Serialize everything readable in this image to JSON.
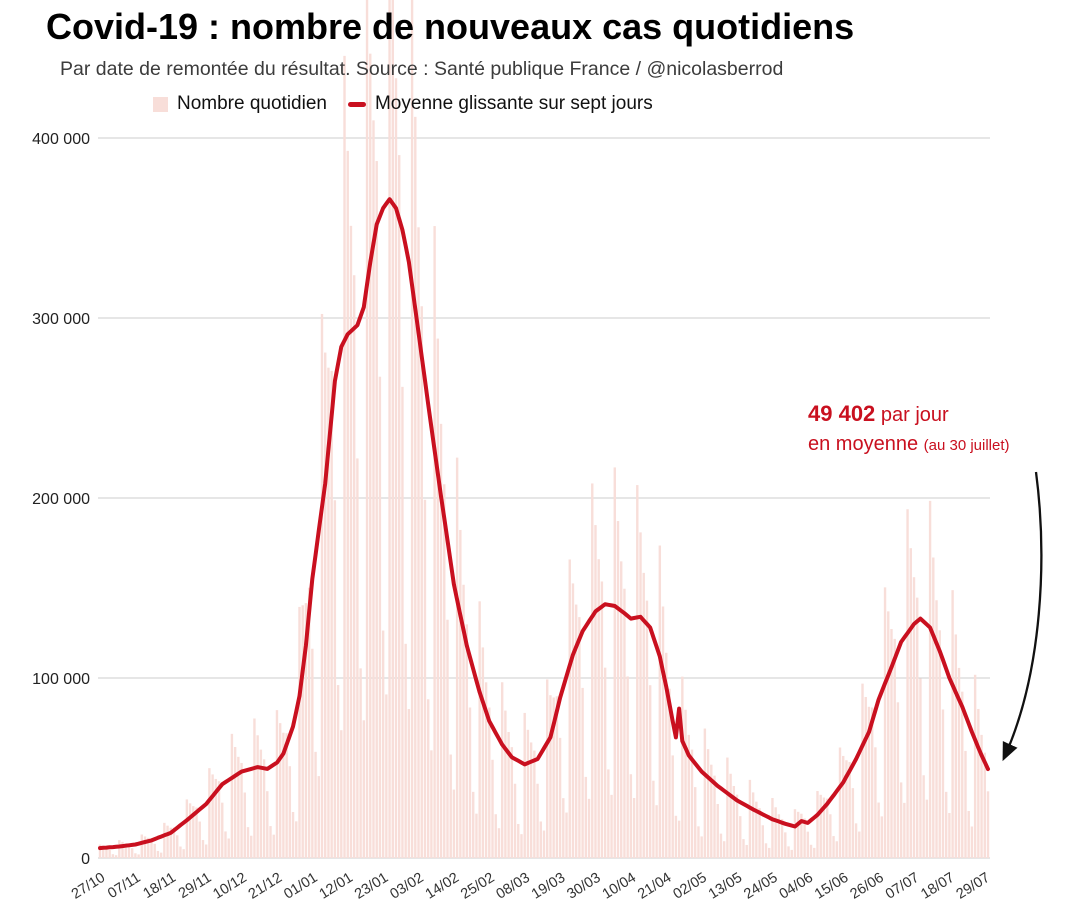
{
  "page": {
    "background": "#ffffff"
  },
  "chart_data": {
    "type": "bar+line",
    "title": "Covid-19 : nombre de nouveaux cas quotidiens",
    "subtitle": "Par date de remontée du résultat. Source : Santé publique France / @nicolasberrod",
    "legend": [
      {
        "label": "Nombre quotidien",
        "marker": "square",
        "color": "#f8ded9"
      },
      {
        "label": "Moyenne glissante sur sept jours",
        "marker": "dash",
        "color": "#c9101f"
      }
    ],
    "ylim": [
      0,
      477000
    ],
    "y_ticks": [
      0,
      100000,
      200000,
      300000,
      400000
    ],
    "y_tick_labels": [
      "0",
      "100 000",
      "200 000",
      "300 000",
      "400 000"
    ],
    "x_tick_labels": [
      "27/10",
      "07/11",
      "18/11",
      "29/11",
      "10/12",
      "21/12",
      "01/01",
      "12/01",
      "23/01",
      "03/02",
      "14/02",
      "25/02",
      "08/03",
      "19/03",
      "30/03",
      "10/04",
      "21/04",
      "02/05",
      "13/05",
      "24/05",
      "04/06",
      "15/06",
      "26/06",
      "07/07",
      "18/07",
      "29/07"
    ],
    "x_tick_interval_days": 11,
    "n_days": 277,
    "series": [
      {
        "name": "Nombre quotidien",
        "type": "bar",
        "note": "daily reported cases; value = moving_average(day) * weekday_factor(day)"
      },
      {
        "name": "Moyenne glissante sur sept jours",
        "type": "line",
        "note": "7-day moving average, anchor points below, linearly interpolated"
      }
    ],
    "avg_anchor_points": [
      [
        0,
        5500
      ],
      [
        5,
        6200
      ],
      [
        11,
        7500
      ],
      [
        16,
        9800
      ],
      [
        22,
        14000
      ],
      [
        27,
        21000
      ],
      [
        33,
        30000
      ],
      [
        38,
        41000
      ],
      [
        44,
        48000
      ],
      [
        49,
        50500
      ],
      [
        52,
        49500
      ],
      [
        55,
        53000
      ],
      [
        57,
        58000
      ],
      [
        60,
        73000
      ],
      [
        62,
        90000
      ],
      [
        64,
        118000
      ],
      [
        66,
        155000
      ],
      [
        68,
        182000
      ],
      [
        70,
        208000
      ],
      [
        73,
        265000
      ],
      [
        75,
        284000
      ],
      [
        77,
        291000
      ],
      [
        80,
        296000
      ],
      [
        82,
        306000
      ],
      [
        84,
        331000
      ],
      [
        86,
        352000
      ],
      [
        88,
        361000
      ],
      [
        90,
        366000
      ],
      [
        92,
        361000
      ],
      [
        94,
        349000
      ],
      [
        96,
        331000
      ],
      [
        99,
        292000
      ],
      [
        102,
        252000
      ],
      [
        106,
        201000
      ],
      [
        110,
        152000
      ],
      [
        114,
        118000
      ],
      [
        118,
        92000
      ],
      [
        121,
        76000
      ],
      [
        125,
        63000
      ],
      [
        128,
        56000
      ],
      [
        132,
        52000
      ],
      [
        136,
        55000
      ],
      [
        140,
        67000
      ],
      [
        143,
        89000
      ],
      [
        147,
        113000
      ],
      [
        150,
        126000
      ],
      [
        154,
        137000
      ],
      [
        157,
        141000
      ],
      [
        160,
        140000
      ],
      [
        163,
        136000
      ],
      [
        165,
        133000
      ],
      [
        168,
        134000
      ],
      [
        171,
        128000
      ],
      [
        174,
        112000
      ],
      [
        176,
        95000
      ],
      [
        178,
        76000
      ],
      [
        179,
        67000
      ],
      [
        180,
        83000
      ],
      [
        181,
        65000
      ],
      [
        183,
        57000
      ],
      [
        187,
        48000
      ],
      [
        192,
        40000
      ],
      [
        198,
        32000
      ],
      [
        203,
        27000
      ],
      [
        209,
        21500
      ],
      [
        213,
        19000
      ],
      [
        216,
        17500
      ],
      [
        218,
        20500
      ],
      [
        220,
        19500
      ],
      [
        223,
        24000
      ],
      [
        226,
        30000
      ],
      [
        231,
        42000
      ],
      [
        235,
        55000
      ],
      [
        239,
        70000
      ],
      [
        242,
        88000
      ],
      [
        246,
        106000
      ],
      [
        249,
        120000
      ],
      [
        253,
        130000
      ],
      [
        255,
        133000
      ],
      [
        258,
        128000
      ],
      [
        261,
        115000
      ],
      [
        264,
        100000
      ],
      [
        268,
        84000
      ],
      [
        271,
        70000
      ],
      [
        274,
        57000
      ],
      [
        276,
        49402
      ]
    ],
    "weekday_factors": [
      1.35,
      1.2,
      1.1,
      0.75,
      0.35,
      0.25,
      1.55
    ],
    "bar_color": "#f8ded9",
    "line_color": "#c9101f",
    "grid_color": "#cccccc",
    "annotation": {
      "value": "49 402",
      "line1_rest": " par jour",
      "line2": "en moyenne ",
      "line2_small": "(au 30 juillet)",
      "color": "#c9101f"
    }
  }
}
